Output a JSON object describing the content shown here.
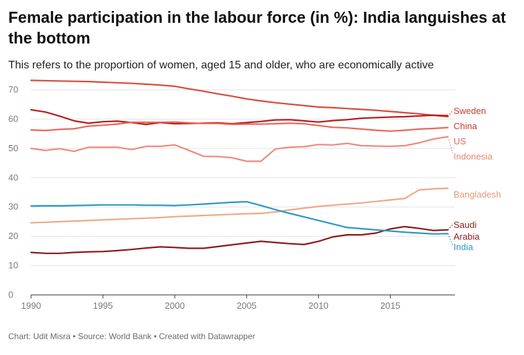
{
  "chart_data": {
    "type": "line",
    "title": "Female participation in the labour force (in %): India languishes at the bottom",
    "subtitle": "This refers to the proportion of women, aged 15 and older, who are economically active",
    "footer": "Chart: Udit Misra • Source: World Bank • Created with Datawrapper",
    "x": [
      1990,
      1991,
      1992,
      1993,
      1994,
      1995,
      1996,
      1997,
      1998,
      1999,
      2000,
      2001,
      2002,
      2003,
      2004,
      2005,
      2006,
      2007,
      2008,
      2009,
      2010,
      2011,
      2012,
      2013,
      2014,
      2015,
      2016,
      2017,
      2018,
      2019
    ],
    "xlim": [
      1990,
      2019.5
    ],
    "ylim": [
      0,
      70
    ],
    "yticks": [
      0,
      10,
      20,
      30,
      40,
      50,
      60,
      70
    ],
    "xticks": [
      1990,
      1995,
      2000,
      2005,
      2010,
      2015
    ],
    "grid": true,
    "series": [
      {
        "name": "Sweden",
        "color": "#d94a3d",
        "values": [
          73.2,
          73.1,
          73.0,
          72.9,
          72.8,
          72.6,
          72.4,
          72.2,
          71.9,
          71.6,
          71.2,
          70.3,
          69.5,
          68.6,
          67.8,
          66.9,
          66.2,
          65.6,
          65.1,
          64.6,
          64.1,
          63.9,
          63.6,
          63.3,
          63.0,
          62.6,
          62.2,
          61.8,
          61.3,
          60.8
        ]
      },
      {
        "name": "China",
        "color": "#b71c1c",
        "values": [
          63.2,
          62.4,
          61.0,
          59.4,
          58.6,
          59.1,
          59.3,
          58.8,
          58.2,
          58.8,
          58.4,
          58.5,
          58.6,
          58.7,
          58.4,
          58.8,
          59.2,
          59.7,
          59.8,
          59.4,
          59.0,
          59.5,
          59.8,
          60.3,
          60.5,
          60.7,
          60.8,
          61.1,
          61.3,
          61.2
        ]
      },
      {
        "name": "US",
        "color": "#e9675a",
        "values": [
          56.3,
          56.1,
          56.5,
          56.7,
          57.6,
          57.9,
          58.3,
          58.9,
          58.9,
          58.9,
          59.0,
          58.7,
          58.5,
          58.5,
          58.2,
          58.3,
          58.3,
          58.4,
          58.6,
          58.4,
          57.8,
          57.2,
          57.0,
          56.6,
          56.2,
          55.9,
          56.2,
          56.6,
          56.8,
          57.1
        ]
      },
      {
        "name": "Indonesia",
        "color": "#ee8a7c",
        "values": [
          50.0,
          49.3,
          49.9,
          49.0,
          50.4,
          50.4,
          50.4,
          49.6,
          50.7,
          50.7,
          51.2,
          49.3,
          47.3,
          47.2,
          46.8,
          45.6,
          45.6,
          49.8,
          50.4,
          50.6,
          51.3,
          51.2,
          51.7,
          50.9,
          50.8,
          50.7,
          50.9,
          51.9,
          53.2,
          54.0
        ]
      },
      {
        "name": "Bangladesh",
        "color": "#f0a888",
        "values": [
          24.6,
          24.8,
          25.0,
          25.2,
          25.4,
          25.6,
          25.8,
          26.0,
          26.2,
          26.4,
          26.7,
          26.9,
          27.1,
          27.3,
          27.5,
          27.7,
          27.8,
          28.3,
          29.0,
          29.6,
          30.2,
          30.6,
          31.0,
          31.4,
          31.9,
          32.4,
          32.9,
          35.8,
          36.2,
          36.4
        ]
      },
      {
        "name": "Saudi Arabia",
        "color": "#8b1a1a",
        "values": [
          14.5,
          14.2,
          14.2,
          14.5,
          14.7,
          14.8,
          15.1,
          15.5,
          16.0,
          16.4,
          16.2,
          15.9,
          15.9,
          16.5,
          17.1,
          17.7,
          18.3,
          17.9,
          17.5,
          17.2,
          18.3,
          19.8,
          20.5,
          20.5,
          21.1,
          22.5,
          23.3,
          22.7,
          22.0,
          22.2
        ]
      },
      {
        "name": "India",
        "color": "#2899c3",
        "values": [
          30.3,
          30.4,
          30.4,
          30.5,
          30.6,
          30.7,
          30.7,
          30.7,
          30.6,
          30.6,
          30.5,
          30.7,
          31.0,
          31.3,
          31.6,
          31.8,
          30.5,
          29.1,
          27.8,
          26.6,
          25.4,
          24.2,
          23.0,
          22.6,
          22.2,
          21.8,
          21.4,
          21.1,
          20.8,
          20.9
        ]
      }
    ],
    "legend_labels": [
      {
        "text": "Sweden",
        "color": "#c53a2e"
      },
      {
        "text": "China",
        "color": "#c53a2e"
      },
      {
        "text": "US",
        "color": "#e26a5b"
      },
      {
        "text": "Indonesia",
        "color": "#e98476"
      },
      {
        "text": "Bangladesh",
        "color": "#e59a78"
      },
      {
        "text": "Saudi",
        "color": "#8b1a1a"
      },
      {
        "text": "Arabia",
        "color": "#8b1a1a"
      },
      {
        "text": "India",
        "color": "#2899c3"
      }
    ]
  }
}
